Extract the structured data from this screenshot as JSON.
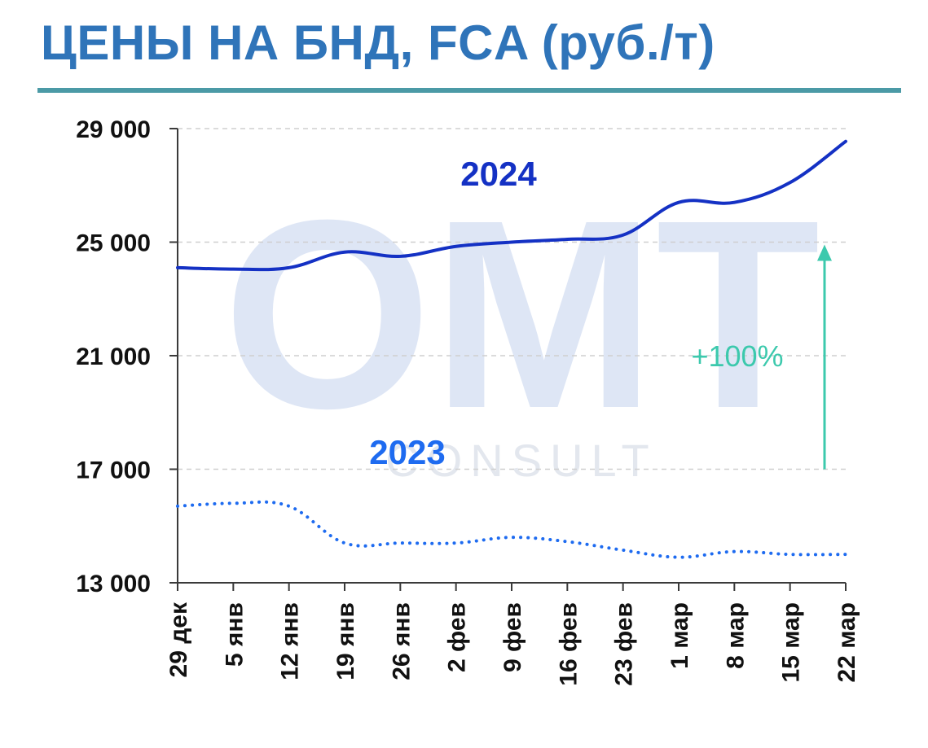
{
  "title": "ЦЕНЫ НА БНД, FCA (руб./т)",
  "watermark": {
    "letters": "OMT",
    "sub": "CONSULT"
  },
  "colors": {
    "title": "#2f74b9",
    "rule": "#4b9aa6",
    "series2024": "#1431c4",
    "series2023": "#1e6bf0",
    "arrow": "#3cc9ad"
  },
  "chart_data": {
    "type": "line",
    "title": "ЦЕНЫ НА БНД, FCA (руб./т)",
    "xlabel": "",
    "ylabel": "",
    "ylim": [
      13000,
      29000
    ],
    "yticks": [
      13000,
      17000,
      21000,
      25000,
      29000
    ],
    "ytick_labels": [
      "13 000",
      "17 000",
      "21 000",
      "25 000",
      "29 000"
    ],
    "grid": true,
    "categories": [
      "29 дек",
      "5 янв",
      "12 янв",
      "19 янв",
      "26 янв",
      "2 фев",
      "9 фев",
      "16 фев",
      "23 фев",
      "1 мар",
      "8 мар",
      "15 мар",
      "22 мар"
    ],
    "series": [
      {
        "name": "2024",
        "style": "solid",
        "values": [
          24100,
          24050,
          24100,
          24650,
          24500,
          24850,
          25000,
          25100,
          25250,
          26400,
          26400,
          27100,
          28550
        ]
      },
      {
        "name": "2023",
        "style": "dotted",
        "values": [
          15700,
          15800,
          15700,
          14400,
          14400,
          14400,
          14600,
          14450,
          14150,
          13900,
          14100,
          14000,
          14000
        ]
      }
    ],
    "annotations": [
      {
        "text": "+100%",
        "type": "arrow-up",
        "from": 17000,
        "to": 24800
      }
    ]
  }
}
